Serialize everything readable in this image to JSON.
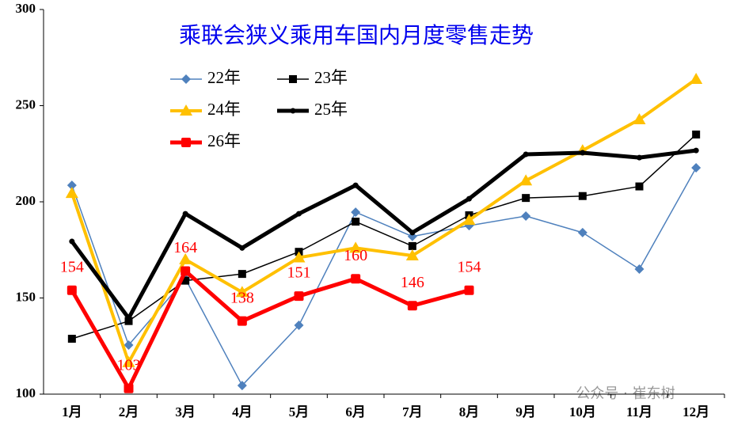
{
  "chart_data": {
    "type": "line",
    "title": "乘联会狭义乘用车国内月度零售走势",
    "categories": [
      "1月",
      "2月",
      "3月",
      "4月",
      "5月",
      "6月",
      "7月",
      "8月",
      "9月",
      "10月",
      "11月",
      "12月"
    ],
    "series": [
      {
        "name": "22年",
        "color": "#4f81bd",
        "marker": "diamond",
        "line_width": 1.5,
        "values": [
          208.6,
          125.5,
          160,
          104.5,
          135.8,
          194.6,
          182,
          187.6,
          192.6,
          184,
          165,
          217.7
        ]
      },
      {
        "name": "23年",
        "color": "#000000",
        "marker": "square",
        "line_width": 1.5,
        "values": [
          128.8,
          138,
          159,
          162.5,
          174,
          189.7,
          177,
          193,
          202,
          203,
          208,
          235
        ]
      },
      {
        "name": "24年",
        "color": "#ffc000",
        "marker": "triangle",
        "line_width": 4,
        "values": [
          204.5,
          116.5,
          170,
          153,
          171,
          176,
          172,
          190.5,
          211,
          226.7,
          242.8,
          263.8
        ]
      },
      {
        "name": "25年",
        "color": "#000000",
        "marker": "circle",
        "line_width": 5,
        "values": [
          179.4,
          139.5,
          193.8,
          176,
          193.8,
          208.6,
          184,
          201.6,
          224.7,
          225.5,
          223,
          226.7
        ]
      },
      {
        "name": "26年",
        "color": "#ff0000",
        "marker": "square",
        "line_width": 5,
        "data_labels": true,
        "values": [
          154,
          103,
          164,
          138,
          151,
          160,
          146,
          154,
          null,
          null,
          null,
          null
        ]
      }
    ],
    "ylim": [
      100,
      300
    ],
    "yticks": [
      100,
      150,
      200,
      250,
      300
    ],
    "grid": false,
    "watermark": "公众号 · 崔东树"
  }
}
